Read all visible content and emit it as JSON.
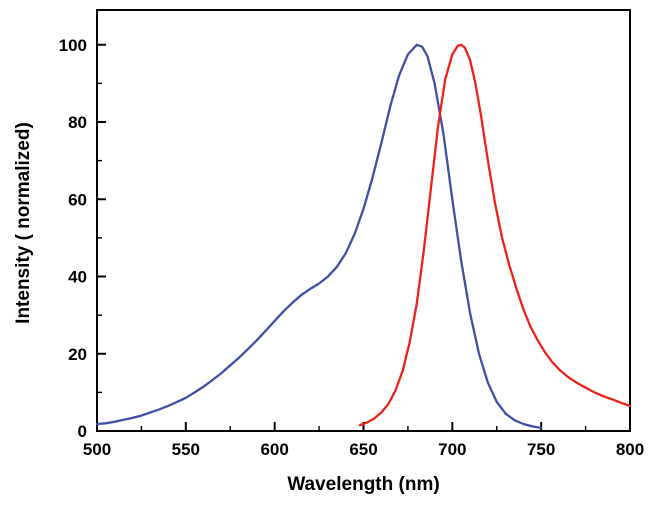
{
  "figure": {
    "background": "#ffffff",
    "frame_color": "#000000"
  },
  "chart_data": {
    "type": "line",
    "title": "",
    "xlabel": "Wavelength (nm)",
    "ylabel": "Intensity ( normalized)",
    "xlim": [
      500,
      800
    ],
    "ylim": [
      0,
      109
    ],
    "xticks": [
      "500",
      "550",
      "600",
      "650",
      "700",
      "750",
      "800"
    ],
    "xtick_values": [
      500,
      550,
      600,
      650,
      700,
      750,
      800
    ],
    "yticks": [
      "0",
      "20",
      "40",
      "60",
      "80",
      "100"
    ],
    "ytick_values": [
      0,
      20,
      40,
      60,
      80,
      100
    ],
    "x_minor_step": 25,
    "y_minor_step": 10,
    "grid": false,
    "legend_position": "none",
    "series": [
      {
        "name": "blue-excitation-spectrum",
        "color": "#3f4fa4",
        "points": [
          [
            500,
            1.8
          ],
          [
            505,
            2.0
          ],
          [
            510,
            2.4
          ],
          [
            515,
            2.9
          ],
          [
            520,
            3.4
          ],
          [
            525,
            4.0
          ],
          [
            530,
            4.8
          ],
          [
            535,
            5.6
          ],
          [
            540,
            6.5
          ],
          [
            545,
            7.5
          ],
          [
            550,
            8.6
          ],
          [
            555,
            10.0
          ],
          [
            560,
            11.5
          ],
          [
            565,
            13.2
          ],
          [
            570,
            15.0
          ],
          [
            575,
            17.0
          ],
          [
            580,
            19.0
          ],
          [
            585,
            21.2
          ],
          [
            590,
            23.5
          ],
          [
            595,
            26.0
          ],
          [
            600,
            28.5
          ],
          [
            605,
            31.0
          ],
          [
            610,
            33.2
          ],
          [
            615,
            35.2
          ],
          [
            620,
            36.8
          ],
          [
            625,
            38.2
          ],
          [
            630,
            40.0
          ],
          [
            635,
            42.5
          ],
          [
            640,
            46.0
          ],
          [
            645,
            51.0
          ],
          [
            650,
            57.5
          ],
          [
            655,
            65.5
          ],
          [
            660,
            74.5
          ],
          [
            665,
            84.0
          ],
          [
            670,
            92.0
          ],
          [
            675,
            97.5
          ],
          [
            680,
            100
          ],
          [
            683,
            99.5
          ],
          [
            686,
            97.0
          ],
          [
            690,
            90.0
          ],
          [
            695,
            77.0
          ],
          [
            700,
            60.0
          ],
          [
            705,
            44.0
          ],
          [
            710,
            30.5
          ],
          [
            715,
            20.0
          ],
          [
            720,
            12.5
          ],
          [
            725,
            7.5
          ],
          [
            730,
            4.5
          ],
          [
            735,
            2.8
          ],
          [
            740,
            1.8
          ],
          [
            745,
            1.2
          ],
          [
            750,
            0.8
          ]
        ]
      },
      {
        "name": "red-emission-spectrum",
        "color": "#ee2119",
        "points": [
          [
            648,
            1.5
          ],
          [
            652,
            2.2
          ],
          [
            656,
            3.2
          ],
          [
            660,
            4.8
          ],
          [
            664,
            7.0
          ],
          [
            668,
            10.5
          ],
          [
            672,
            15.5
          ],
          [
            676,
            23.0
          ],
          [
            680,
            33.0
          ],
          [
            684,
            47.0
          ],
          [
            688,
            63.0
          ],
          [
            692,
            79.0
          ],
          [
            696,
            91.0
          ],
          [
            700,
            97.5
          ],
          [
            703,
            99.7
          ],
          [
            705,
            100
          ],
          [
            707,
            99.3
          ],
          [
            710,
            96.0
          ],
          [
            713,
            90.0
          ],
          [
            716,
            82.0
          ],
          [
            720,
            70.0
          ],
          [
            724,
            59.0
          ],
          [
            728,
            50.0
          ],
          [
            732,
            43.0
          ],
          [
            736,
            37.0
          ],
          [
            740,
            31.5
          ],
          [
            744,
            27.0
          ],
          [
            748,
            23.5
          ],
          [
            752,
            20.5
          ],
          [
            756,
            18.0
          ],
          [
            760,
            16.0
          ],
          [
            765,
            14.0
          ],
          [
            770,
            12.5
          ],
          [
            775,
            11.2
          ],
          [
            780,
            10.0
          ],
          [
            785,
            9.0
          ],
          [
            790,
            8.2
          ],
          [
            795,
            7.3
          ],
          [
            800,
            6.5
          ]
        ]
      }
    ]
  }
}
